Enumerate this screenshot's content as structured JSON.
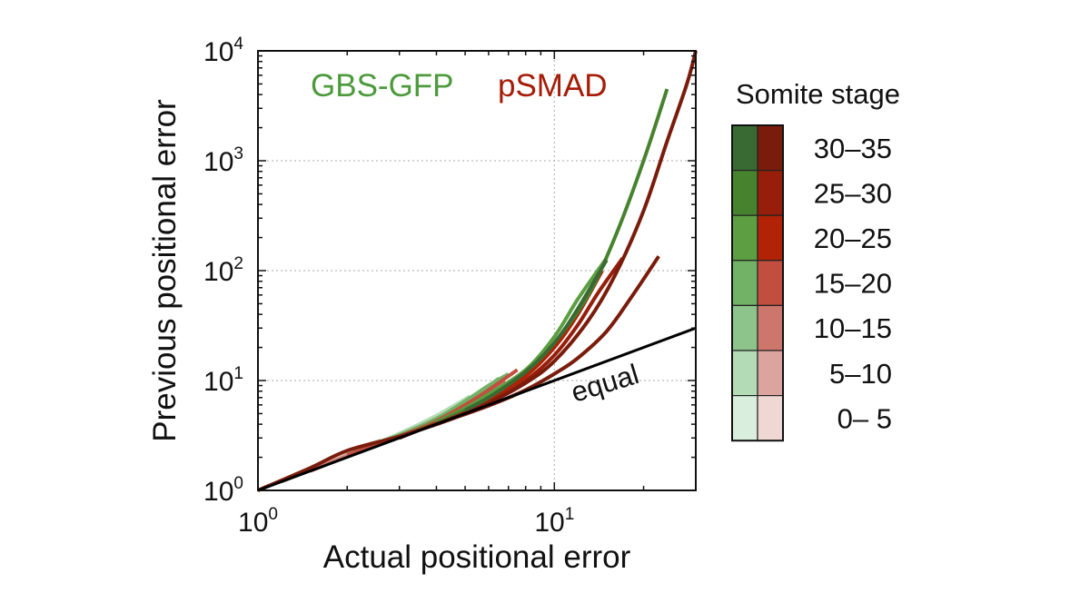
{
  "chart_data": {
    "type": "line",
    "scale": "log-log",
    "xlabel": "Actual positional error",
    "ylabel": "Previous positional error",
    "xlim": [
      1,
      30
    ],
    "ylim": [
      1,
      10000
    ],
    "grid": true,
    "x_ticks": [
      {
        "value": 1,
        "base": "10",
        "exp": "0"
      },
      {
        "value": 10,
        "base": "10",
        "exp": "1"
      }
    ],
    "y_ticks": [
      {
        "value": 1,
        "base": "10",
        "exp": "0"
      },
      {
        "value": 10,
        "base": "10",
        "exp": "1"
      },
      {
        "value": 100,
        "base": "10",
        "exp": "2"
      },
      {
        "value": 1000,
        "base": "10",
        "exp": "3"
      },
      {
        "value": 10000,
        "base": "10",
        "exp": "4"
      }
    ],
    "group_labels": {
      "green": "GBS-GFP",
      "red": "pSMAD"
    },
    "reference_line": {
      "label": "equal",
      "x": [
        1,
        30
      ],
      "y": [
        1,
        30
      ]
    },
    "legend": {
      "title": "Somite stage",
      "position": "right",
      "stages": [
        "30–35",
        "25–30",
        "20–25",
        "15–20",
        "10–15",
        "5–10",
        "0–  5"
      ]
    },
    "colors": {
      "green": [
        "#3a6a33",
        "#47822f",
        "#5c9e41",
        "#72b266",
        "#8cc48c",
        "#b3dbb5",
        "#d9eedc"
      ],
      "red": [
        "#7a1c0c",
        "#961e0a",
        "#b12206",
        "#c14e3f",
        "#cc766c",
        "#dba49e",
        "#efd7d4"
      ],
      "equal": "#000000"
    },
    "series": [
      {
        "name": "GBS-GFP 0–5",
        "group": "green",
        "stage": 6,
        "x": [
          1,
          1.5,
          2,
          2.6
        ],
        "y": [
          1,
          1.6,
          2.2,
          2.9
        ]
      },
      {
        "name": "pSMAD 0–5",
        "group": "red",
        "stage": 6,
        "x": [
          1,
          1.7,
          2.4,
          3.0
        ],
        "y": [
          1,
          1.8,
          2.5,
          3.2
        ]
      },
      {
        "name": "GBS-GFP 5–10",
        "group": "green",
        "stage": 5,
        "x": [
          1.2,
          2,
          3,
          4,
          5.2
        ],
        "y": [
          1.2,
          2.1,
          3.3,
          4.8,
          7.2
        ]
      },
      {
        "name": "pSMAD 5–10",
        "group": "red",
        "stage": 5,
        "x": [
          1.2,
          2,
          3,
          4,
          5.5
        ],
        "y": [
          1.2,
          2.1,
          3.2,
          4.5,
          7.0
        ]
      },
      {
        "name": "GBS-GFP 10–15",
        "group": "green",
        "stage": 4,
        "x": [
          1.5,
          2.5,
          3.5,
          5,
          6.5
        ],
        "y": [
          1.5,
          2.6,
          3.8,
          6.2,
          10.5
        ]
      },
      {
        "name": "pSMAD 10–15",
        "group": "red",
        "stage": 4,
        "x": [
          1.5,
          2.5,
          3.5,
          5,
          6.8
        ],
        "y": [
          1.5,
          2.6,
          3.7,
          5.9,
          10.0
        ]
      },
      {
        "name": "GBS-GFP 15–20",
        "group": "green",
        "stage": 3,
        "x": [
          2,
          3,
          4,
          5,
          6,
          7
        ],
        "y": [
          2.1,
          3.2,
          4.5,
          6.5,
          9.0,
          11.5
        ]
      },
      {
        "name": "pSMAD 15–20",
        "group": "red",
        "stage": 3,
        "x": [
          2,
          3,
          4,
          5,
          6,
          7.5
        ],
        "y": [
          2.1,
          3.1,
          4.3,
          6.0,
          8.2,
          12.5
        ]
      },
      {
        "name": "GBS-GFP 20–25",
        "group": "green",
        "stage": 2,
        "x": [
          3,
          4,
          5,
          6,
          8,
          10,
          12,
          15
        ],
        "y": [
          3.0,
          4.2,
          5.6,
          7.5,
          12.5,
          25,
          55,
          130
        ]
      },
      {
        "name": "pSMAD 20–25",
        "group": "red",
        "stage": 2,
        "x": [
          3,
          4,
          5,
          6,
          8,
          10,
          12,
          14.5
        ],
        "y": [
          3.0,
          4.1,
          5.3,
          6.8,
          11,
          20,
          40,
          100
        ]
      },
      {
        "name": "GBS-GFP 25–30",
        "group": "green",
        "stage": 1,
        "x": [
          4,
          5,
          6,
          8,
          10,
          13,
          16,
          20,
          24
        ],
        "y": [
          4.1,
          5.4,
          7.0,
          12,
          22,
          60,
          200,
          1000,
          4500
        ]
      },
      {
        "name": "pSMAD 25–30",
        "group": "red",
        "stage": 1,
        "x": [
          4,
          5,
          6,
          8,
          10,
          12,
          14,
          17
        ],
        "y": [
          4.0,
          5.1,
          6.3,
          10,
          17,
          32,
          62,
          130
        ]
      },
      {
        "name": "GBS-GFP 30–35",
        "group": "green",
        "stage": 0,
        "x": [
          5,
          6,
          8,
          10,
          12,
          15
        ],
        "y": [
          5.4,
          7.0,
          12,
          22,
          45,
          125
        ]
      },
      {
        "name": "pSMAD 30–35",
        "group": "red",
        "stage": 0,
        "x": [
          1,
          1.5,
          2,
          3,
          4,
          5,
          6,
          8,
          10,
          13,
          16,
          20,
          24,
          28,
          30
        ],
        "y": [
          1,
          1.6,
          2.3,
          3.1,
          4.0,
          5.0,
          6.2,
          9.5,
          15,
          35,
          90,
          350,
          1500,
          5000,
          10000
        ]
      },
      {
        "name": "pSMAD 30–35 b",
        "group": "red",
        "stage": 0,
        "x": [
          4,
          6,
          8,
          10,
          12,
          15,
          18,
          22.5
        ],
        "y": [
          4.0,
          5.9,
          8.2,
          11.5,
          16,
          28,
          55,
          135
        ]
      }
    ]
  }
}
